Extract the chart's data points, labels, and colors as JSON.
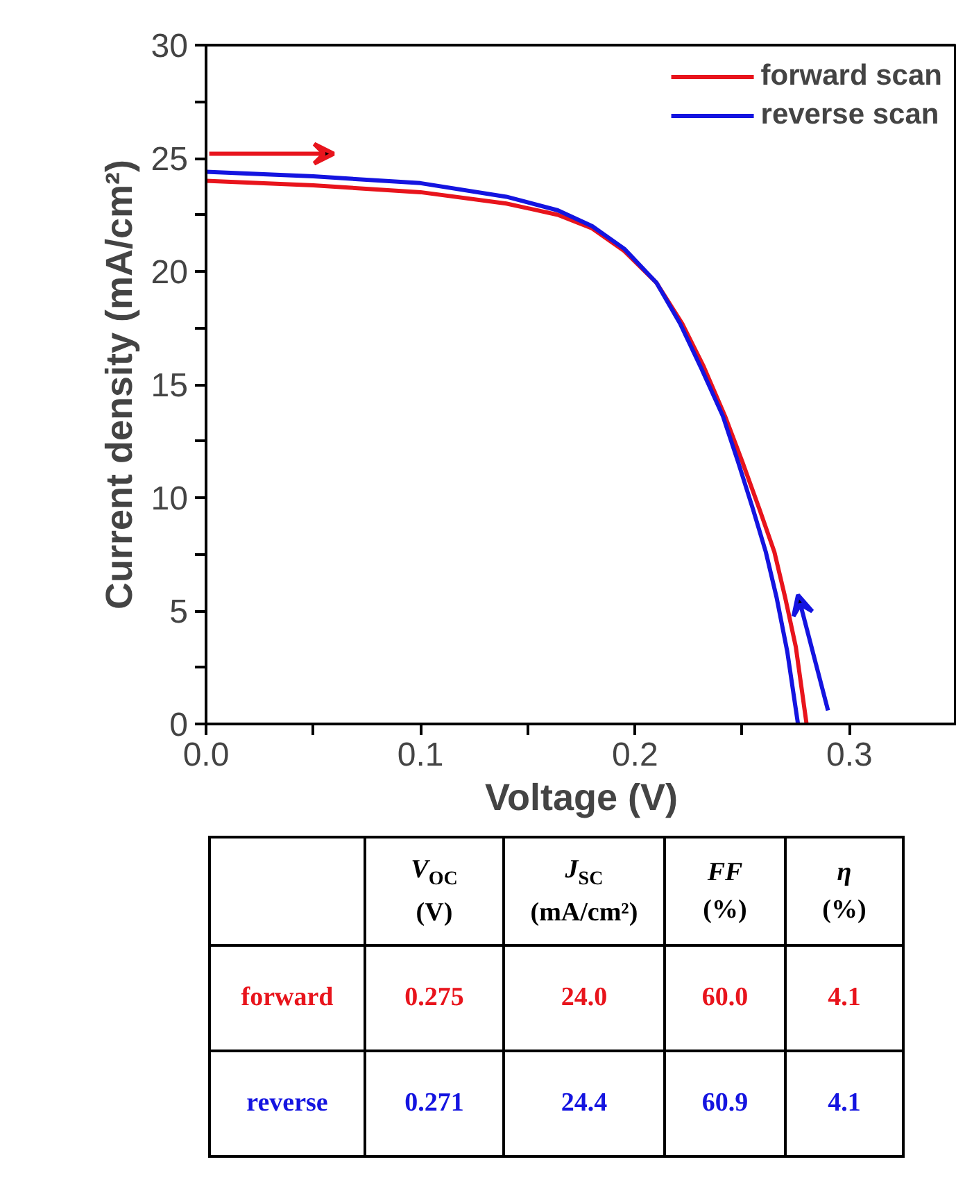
{
  "chart_data": [
    {
      "type": "line",
      "xlabel": "Voltage (V)",
      "ylabel": "Current density (mA/cm²)",
      "xlim": [
        0,
        0.35
      ],
      "ylim": [
        0,
        30
      ],
      "xticks": [
        {
          "value": 0,
          "label": "0.0"
        },
        {
          "value": 0.05,
          "label": null
        },
        0.1,
        {
          "value": 0.15,
          "label": null
        },
        0.2,
        {
          "value": 0.25,
          "label": null
        },
        0.3
      ],
      "yticks": [
        0,
        {
          "value": 2.5,
          "label": null
        },
        5,
        {
          "value": 7.5,
          "label": null
        },
        10,
        {
          "value": 12.5,
          "label": null
        },
        15,
        {
          "value": 17.5,
          "label": null
        },
        20,
        {
          "value": 22.5,
          "label": null
        },
        25,
        {
          "value": 27.5,
          "label": null
        },
        30
      ],
      "grid": false,
      "legend": "top right",
      "line_style": "solid",
      "marker": "none",
      "series": [
        {
          "name": "forward scan",
          "color": "#e8141c",
          "x": [
            0,
            0.05,
            0.1,
            0.14,
            0.164,
            0.18,
            0.195,
            0.21,
            0.222,
            0.232,
            0.242,
            0.25,
            0.258,
            0.265,
            0.27,
            0.275,
            0.28
          ],
          "values": [
            24.0,
            23.8,
            23.5,
            23.0,
            22.5,
            21.9,
            20.9,
            19.5,
            17.7,
            15.8,
            13.6,
            11.6,
            9.5,
            7.6,
            5.6,
            3.4,
            0
          ]
        },
        {
          "name": "reverse scan",
          "color": "#1414e0",
          "x": [
            0,
            0.05,
            0.1,
            0.14,
            0.164,
            0.18,
            0.195,
            0.21,
            0.221,
            0.231,
            0.241,
            0.248,
            0.255,
            0.261,
            0.266,
            0.271,
            0.276
          ],
          "values": [
            24.4,
            24.2,
            23.9,
            23.3,
            22.7,
            22.0,
            21.0,
            19.5,
            17.7,
            15.7,
            13.6,
            11.6,
            9.5,
            7.6,
            5.6,
            3.2,
            0
          ]
        }
      ]
    },
    {
      "type": "other",
      "categories": [
        null,
        "V$_{OC}$ (V)",
        "J$_{SC}$ (mA/cm²)",
        "FF (%)",
        "η (%)"
      ],
      "y_categories": [
        "forward",
        "reverse"
      ],
      "colors": [
        "#e8141c",
        "#1414e0"
      ],
      "cell_labels": [
        [
          "0.275",
          "24.0",
          "60.0",
          "4.1"
        ],
        [
          "0.271",
          "24.4",
          "60.9",
          "4.1"
        ]
      ]
    }
  ]
}
